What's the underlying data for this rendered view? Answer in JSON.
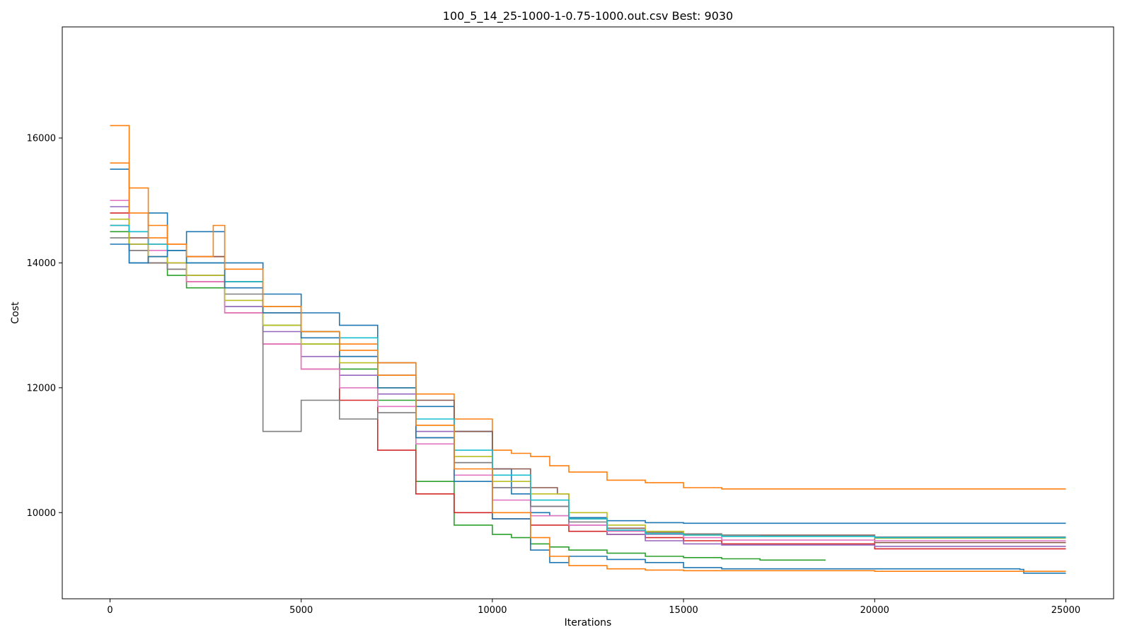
{
  "chart_data": {
    "type": "line",
    "title": "100_5_14_25-1000-1-0.75-1000.out.csv Best: 9030",
    "xlabel": "Iterations",
    "ylabel": "Cost",
    "xlim": [
      -1250,
      26250
    ],
    "ylim": [
      8620,
      17780
    ],
    "xticks": [
      0,
      5000,
      10000,
      15000,
      20000,
      25000
    ],
    "xtick_labels": [
      "0",
      "5000",
      "10000",
      "15000",
      "20000",
      "25000"
    ],
    "yticks": [
      10000,
      12000,
      14000,
      16000
    ],
    "ytick_labels": [
      "10000",
      "12000",
      "14000",
      "16000"
    ],
    "grid": false,
    "legend": "none",
    "series": [
      {
        "color": "#1f77b4",
        "x": [
          0,
          500,
          1000,
          1500,
          2000,
          3000,
          4000,
          5000,
          6000,
          7000,
          8000,
          9000,
          10000,
          10500,
          11000,
          11500,
          12000,
          13000,
          14000,
          15000,
          16000,
          20000,
          25000
        ],
        "y": [
          15500,
          14000,
          14800,
          14200,
          14500,
          14000,
          13500,
          13200,
          13000,
          12400,
          11700,
          11300,
          10700,
          10300,
          10000,
          9950,
          9920,
          9870,
          9840,
          9830,
          9830,
          9830,
          9830
        ]
      },
      {
        "color": "#ff7f0e",
        "x": [
          0,
          500,
          1000,
          1500,
          2000,
          3000,
          4000,
          5000,
          6000,
          7000,
          8000,
          9000,
          10000,
          10500,
          11000,
          11500,
          12000,
          13000,
          14000,
          15000,
          16000,
          20000,
          25000
        ],
        "y": [
          16200,
          15200,
          14600,
          14300,
          14100,
          13700,
          13300,
          12900,
          12700,
          12400,
          11900,
          11500,
          11000,
          10950,
          10900,
          10750,
          10650,
          10520,
          10480,
          10400,
          10380,
          10380,
          10380
        ]
      },
      {
        "color": "#2ca02c",
        "x": [
          0,
          500,
          1000,
          1500,
          2000,
          3000,
          4000,
          5000,
          6000,
          7000,
          8000,
          9000,
          10000,
          10500,
          11000,
          11500,
          12000,
          13000,
          14000,
          15000,
          16000,
          17000,
          18700
        ],
        "y": [
          14500,
          14300,
          14000,
          13800,
          13600,
          13300,
          13000,
          12700,
          12300,
          11800,
          10500,
          9800,
          9650,
          9600,
          9500,
          9450,
          9400,
          9350,
          9300,
          9280,
          9260,
          9240,
          9230
        ]
      },
      {
        "color": "#d62728",
        "x": [
          0,
          500,
          1000,
          1500,
          2000,
          3000,
          4000,
          5000,
          6000,
          7000,
          8000,
          9000,
          10000,
          11000,
          12000,
          13000,
          14000,
          15000,
          16000,
          20000,
          25000
        ],
        "y": [
          14800,
          14200,
          14000,
          13900,
          13700,
          13200,
          12700,
          12300,
          11800,
          11000,
          10300,
          10000,
          9900,
          9800,
          9700,
          9650,
          9600,
          9550,
          9500,
          9420,
          9420
        ]
      },
      {
        "color": "#9467bd",
        "x": [
          0,
          500,
          1000,
          1500,
          2000,
          3000,
          4000,
          5000,
          6000,
          7000,
          8000,
          9000,
          10000,
          11000,
          12000,
          13000,
          14000,
          15000,
          16000,
          20000,
          25000
        ],
        "y": [
          14900,
          14300,
          14100,
          14000,
          13800,
          13300,
          12900,
          12500,
          12200,
          11900,
          11300,
          10800,
          10400,
          10100,
          9800,
          9650,
          9550,
          9500,
          9480,
          9460,
          9460
        ]
      },
      {
        "color": "#8c564b",
        "x": [
          0,
          500,
          1000,
          1500,
          2000,
          3000,
          4000,
          5000,
          6000,
          7000,
          8000,
          9000,
          10000,
          11000,
          11700,
          12000,
          13000,
          14000,
          15000,
          16000,
          20000,
          25000
        ],
        "y": [
          14600,
          14400,
          14300,
          14200,
          14100,
          13700,
          13200,
          12900,
          12500,
          12200,
          11800,
          11300,
          10700,
          10400,
          10300,
          9900,
          9750,
          9680,
          9650,
          9640,
          9520,
          9520
        ]
      },
      {
        "color": "#e377c2",
        "x": [
          0,
          500,
          1000,
          1500,
          2000,
          3000,
          4000,
          5000,
          6000,
          7000,
          8000,
          9000,
          10000,
          11000,
          12000,
          13000,
          14000,
          15000,
          16000,
          20000,
          25000
        ],
        "y": [
          15000,
          14500,
          14200,
          14000,
          13700,
          13200,
          12700,
          12300,
          12000,
          11700,
          11100,
          10600,
          10200,
          9950,
          9800,
          9700,
          9650,
          9600,
          9560,
          9550,
          9550
        ]
      },
      {
        "color": "#7f7f7f",
        "x": [
          0,
          500,
          1000,
          1500,
          2000,
          3000,
          4000,
          5000,
          6000,
          7000,
          8000,
          9000,
          10000,
          11000,
          12000,
          13000,
          14000,
          15000,
          16000,
          17000,
          20000,
          25000
        ],
        "y": [
          14400,
          14200,
          14000,
          13900,
          13800,
          13500,
          11300,
          11800,
          11500,
          11600,
          11200,
          10800,
          10400,
          10100,
          9850,
          9720,
          9680,
          9660,
          9640,
          9630,
          9610,
          9610
        ]
      },
      {
        "color": "#bcbd22",
        "x": [
          0,
          500,
          1000,
          1500,
          2000,
          3000,
          4000,
          5000,
          6000,
          7000,
          8000,
          9000,
          10000,
          11000,
          12000,
          13000,
          14000,
          15000,
          16000,
          20000,
          25000
        ],
        "y": [
          14700,
          14300,
          14100,
          14000,
          13800,
          13400,
          13000,
          12700,
          12400,
          12000,
          11400,
          10900,
          10500,
          10300,
          10000,
          9800,
          9700,
          9640,
          9620,
          9590,
          9590
        ]
      },
      {
        "color": "#17becf",
        "x": [
          0,
          500,
          1000,
          1500,
          2000,
          3000,
          4000,
          5000,
          6000,
          7000,
          8000,
          9000,
          10000,
          11000,
          12000,
          13000,
          14000,
          15000,
          16000,
          20000,
          25000
        ],
        "y": [
          14600,
          14500,
          14300,
          14200,
          14000,
          13700,
          13300,
          12900,
          12800,
          12200,
          11500,
          11000,
          10600,
          10200,
          9900,
          9720,
          9660,
          9640,
          9620,
          9600,
          9600
        ]
      },
      {
        "color": "#1f77b4",
        "x": [
          0,
          500,
          1000,
          1500,
          2000,
          3000,
          4000,
          5000,
          6000,
          7000,
          8000,
          9000,
          10000,
          11000,
          11500,
          12000,
          13000,
          14000,
          15000,
          16000,
          20000,
          23800,
          23900,
          25000
        ],
        "y": [
          14300,
          14000,
          14100,
          14200,
          14000,
          13600,
          13200,
          12800,
          12500,
          12000,
          11200,
          10500,
          9900,
          9400,
          9200,
          9300,
          9250,
          9200,
          9120,
          9100,
          9100,
          9090,
          9030,
          9030
        ]
      },
      {
        "color": "#ff7f0e",
        "x": [
          0,
          500,
          1000,
          1500,
          2000,
          2700,
          3000,
          4000,
          5000,
          6000,
          7000,
          8000,
          9000,
          10000,
          11000,
          11500,
          12000,
          13000,
          14000,
          15000,
          16000,
          20000,
          25000
        ],
        "y": [
          15600,
          14800,
          14400,
          14300,
          14100,
          14600,
          13900,
          13300,
          12900,
          12600,
          12200,
          11400,
          10700,
          10000,
          9600,
          9300,
          9150,
          9100,
          9080,
          9070,
          9070,
          9060,
          9060
        ]
      }
    ]
  }
}
